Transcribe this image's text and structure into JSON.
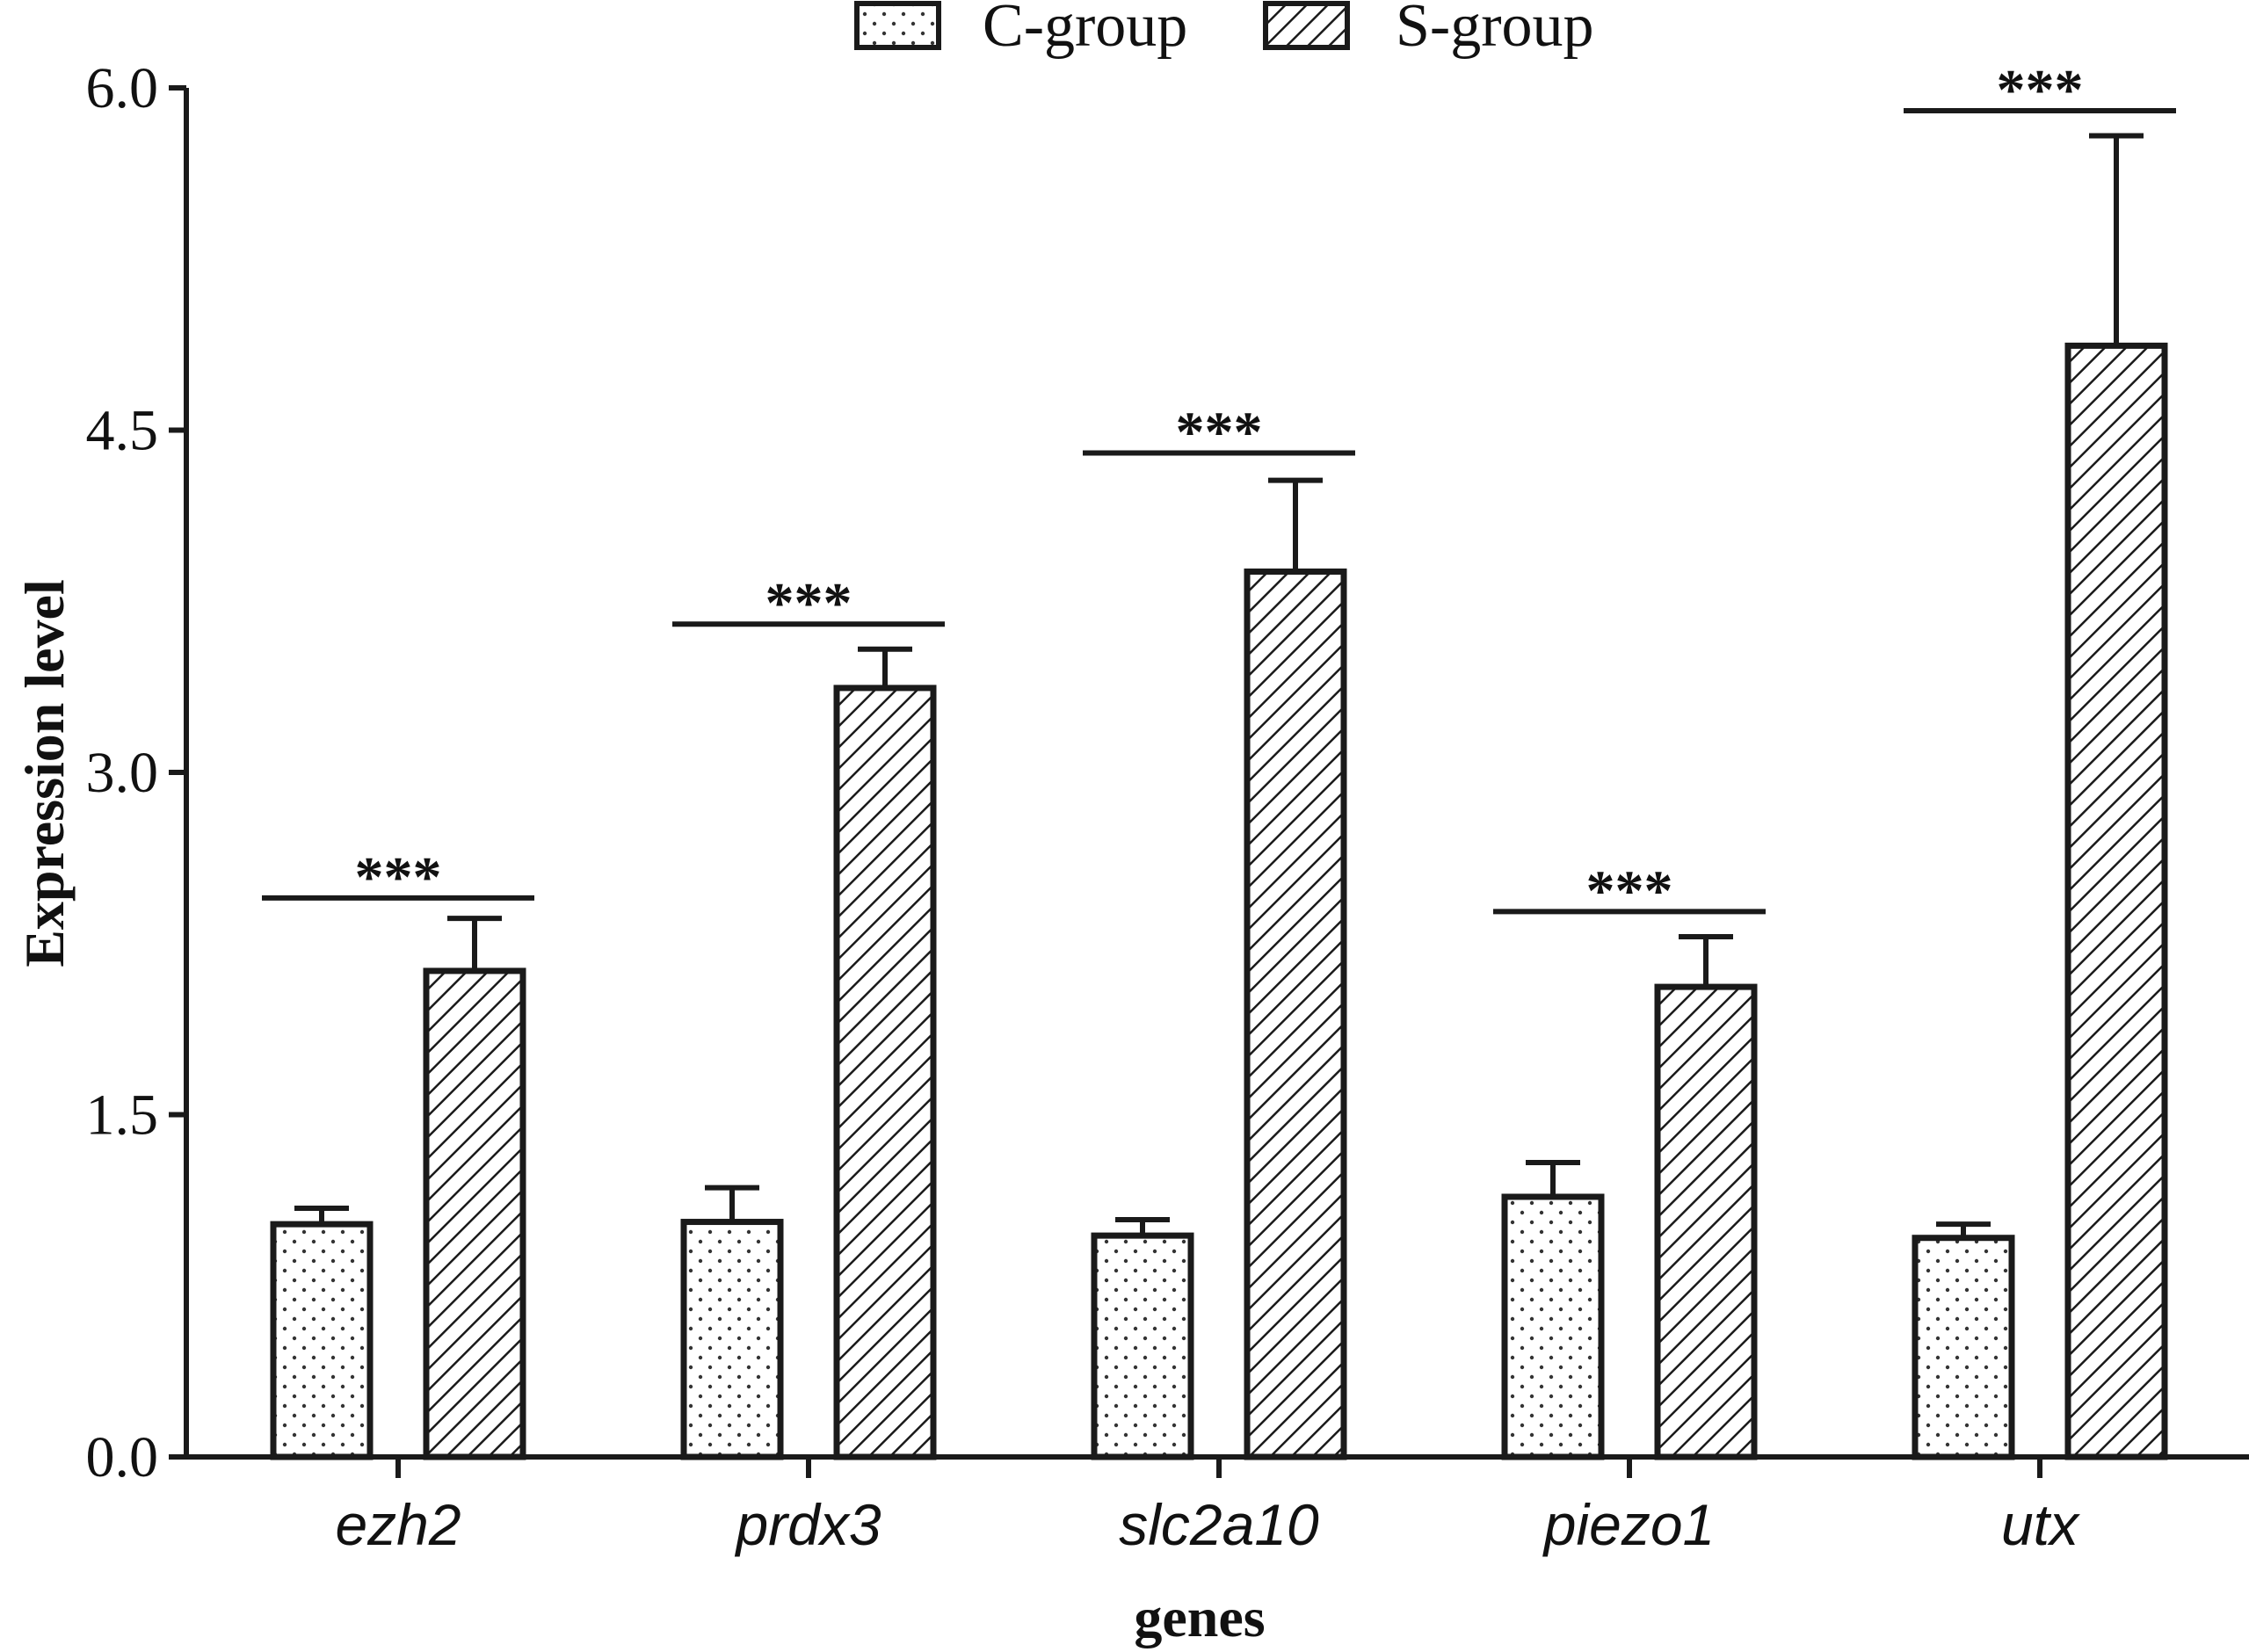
{
  "chart_data": {
    "type": "bar",
    "categories": [
      "ezh2",
      "prdx3",
      "slc2a10",
      "piezo1",
      "utx"
    ],
    "series": [
      {
        "name": "C-group",
        "pattern": "dots",
        "values": [
          1.02,
          1.03,
          0.97,
          1.14,
          0.96
        ],
        "errors": [
          0.07,
          0.15,
          0.07,
          0.15,
          0.06
        ]
      },
      {
        "name": "S-group",
        "pattern": "hatch",
        "values": [
          2.13,
          3.37,
          3.88,
          2.06,
          4.87
        ],
        "errors": [
          0.23,
          0.17,
          0.4,
          0.22,
          0.92
        ]
      }
    ],
    "significance": [
      {
        "label": "***",
        "y": 2.45
      },
      {
        "label": "***",
        "y": 3.65
      },
      {
        "label": "***",
        "y": 4.4
      },
      {
        "label": "***",
        "y": 2.39
      },
      {
        "label": "***",
        "y": 5.9
      }
    ],
    "yticks": [
      "0.0",
      "1.5",
      "3.0",
      "4.5",
      "6.0"
    ],
    "ylim": [
      0,
      6.0
    ],
    "xlabel": "genes",
    "ylabel": "Expression level",
    "legend_position": "top",
    "colors": {
      "line": "#1a1a1a",
      "fill": "#ffffff"
    }
  }
}
